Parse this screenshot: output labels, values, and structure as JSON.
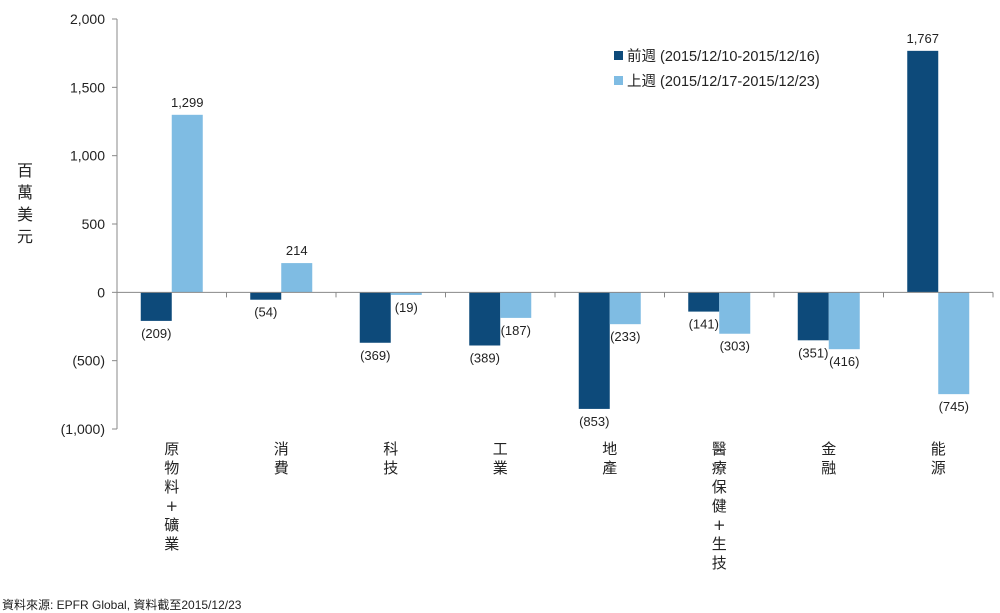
{
  "chart_data": {
    "type": "bar",
    "ylabel": "百萬美元",
    "ylim": [
      -1000,
      2000
    ],
    "yticks": [
      2000,
      1500,
      1000,
      500,
      0,
      -500,
      -1000
    ],
    "ytick_labels": [
      "2,000",
      "1,500",
      "1,000",
      "500",
      "0",
      "(500)",
      "(1,000)"
    ],
    "categories": [
      "原物料+礦業",
      "消費",
      "科技",
      "工業",
      "地產",
      "醫療保健+生技",
      "金融",
      "能源"
    ],
    "series": [
      {
        "name": "前週 (2015/12/10-2015/12/16)",
        "color": "#0d4a7a",
        "values": [
          -209,
          -54,
          -369,
          -389,
          -853,
          -141,
          -351,
          1767
        ],
        "labels": [
          "(209)",
          "(54)",
          "(369)",
          "(389)",
          "(853)",
          "(141)",
          "(351)",
          "1,767"
        ]
      },
      {
        "name": "上週 (2015/12/17-2015/12/23)",
        "color": "#7fbce3",
        "values": [
          1299,
          214,
          -19,
          -187,
          -233,
          -303,
          -416,
          -745
        ],
        "labels": [
          "1,299",
          "214",
          "(19)",
          "(187)",
          "(233)",
          "(303)",
          "(416)",
          "(745)"
        ]
      }
    ],
    "legend_position": "top-right",
    "grid": false
  },
  "source": "資料來源: EPFR Global, 資料截至2015/12/23"
}
